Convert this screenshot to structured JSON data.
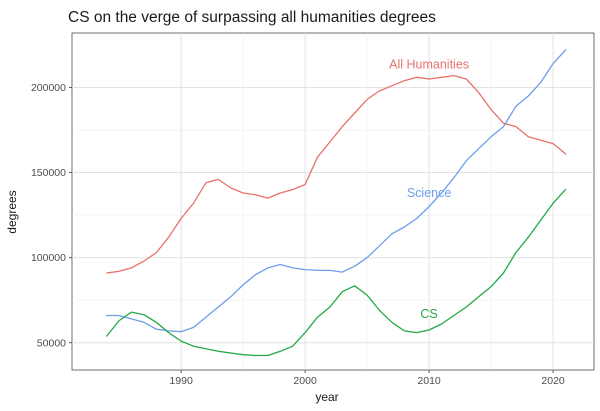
{
  "chart_data": {
    "type": "line",
    "title": "CS on the verge of surpassing all humanities degrees",
    "xlabel": "year",
    "ylabel": "degrees",
    "xlim": [
      1981.2,
      2023.3
    ],
    "ylim": [
      34000,
      232000
    ],
    "x_ticks": [
      1990,
      2000,
      2010,
      2020
    ],
    "x_tick_labels": [
      "1990",
      "2000",
      "2010",
      "2020"
    ],
    "y_ticks": [
      50000,
      100000,
      150000,
      200000
    ],
    "y_tick_labels": [
      "50000",
      "100000",
      "150000",
      "200000"
    ],
    "grid": true,
    "legend": "none (direct labels)",
    "series": [
      {
        "name": "All Humanities",
        "label": "All Humanities",
        "label_at": [
          2010,
          213500
        ],
        "color": "#e8716b",
        "x": [
          1984,
          1985,
          1986,
          1987,
          1988,
          1989,
          1990,
          1991,
          1992,
          1993,
          1994,
          1995,
          1996,
          1997,
          1998,
          1999,
          2000,
          2001,
          2002,
          2003,
          2004,
          2005,
          2006,
          2007,
          2008,
          2009,
          2010,
          2011,
          2012,
          2013,
          2014,
          2015,
          2016,
          2017,
          2018,
          2019,
          2020,
          2021
        ],
        "values": [
          91000,
          92000,
          94000,
          98000,
          103000,
          112000,
          123000,
          132000,
          144000,
          146000,
          141000,
          138000,
          137000,
          135000,
          138000,
          140000,
          143000,
          159000,
          168000,
          177000,
          185000,
          193000,
          198000,
          201000,
          204000,
          206000,
          205000,
          206000,
          207000,
          205000,
          197000,
          187000,
          179000,
          177000,
          171000,
          169000,
          167000,
          161000
        ]
      },
      {
        "name": "Science",
        "label": "Science",
        "label_at": [
          2010,
          138000
        ],
        "color": "#6d9eeb",
        "x": [
          1984,
          1985,
          1986,
          1987,
          1988,
          1989,
          1990,
          1991,
          1992,
          1993,
          1994,
          1995,
          1996,
          1997,
          1998,
          1999,
          2000,
          2001,
          2002,
          2003,
          2004,
          2005,
          2006,
          2007,
          2008,
          2009,
          2010,
          2011,
          2012,
          2013,
          2014,
          2015,
          2016,
          2017,
          2018,
          2019,
          2020,
          2021
        ],
        "values": [
          66000,
          66000,
          64000,
          62000,
          58000,
          57000,
          56500,
          59000,
          65000,
          71000,
          77000,
          84000,
          90000,
          94000,
          96000,
          94000,
          93000,
          92500,
          92500,
          91500,
          95000,
          100000,
          107000,
          114000,
          118000,
          123000,
          130000,
          138000,
          147000,
          157000,
          164000,
          171000,
          177000,
          189000,
          195000,
          203000,
          214000,
          222000
        ]
      },
      {
        "name": "CS",
        "label": "CS",
        "label_at": [
          2010,
          67000
        ],
        "color": "#22a946",
        "x": [
          1984,
          1985,
          1986,
          1987,
          1988,
          1989,
          1990,
          1991,
          1992,
          1993,
          1994,
          1995,
          1996,
          1997,
          1998,
          1999,
          2000,
          2001,
          2002,
          2003,
          2004,
          2005,
          2006,
          2007,
          2008,
          2009,
          2010,
          2011,
          2012,
          2013,
          2014,
          2015,
          2016,
          2017,
          2018,
          2019,
          2020,
          2021
        ],
        "values": [
          54000,
          63000,
          68000,
          66500,
          62000,
          56000,
          51000,
          48000,
          46500,
          45000,
          44000,
          43000,
          42500,
          42500,
          45000,
          48000,
          56000,
          65000,
          71000,
          80000,
          83500,
          78000,
          69000,
          62000,
          57000,
          56000,
          57500,
          61000,
          66000,
          71000,
          77000,
          83000,
          91000,
          103000,
          112000,
          122000,
          132000,
          140000
        ]
      }
    ]
  }
}
